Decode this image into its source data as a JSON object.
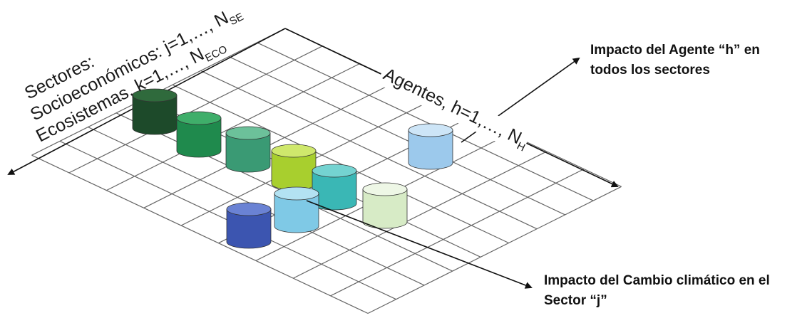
{
  "labels": {
    "sectores": "Sectores:",
    "socio_main": "Socioeconómicos: j=1,…, N",
    "socio_sub": "SE",
    "eco_main": "Ecosistemas, k=1,…, N",
    "eco_sub": "ECO",
    "agentes_main": "Agentes, h=1,…, N",
    "agentes_sub": "H",
    "impact_agent_line1": "Impacto del Agente “h” en",
    "impact_agent_line2": "todos los sectores",
    "impact_climate_line1": "Impacto del Cambio climático en el",
    "impact_climate_line2": "Sector “j”"
  },
  "cylinders": [
    {
      "id": "cyl-1",
      "side": "#1d4a2a",
      "top": "#2f6a3c"
    },
    {
      "id": "cyl-2",
      "side": "#1f8a4d",
      "top": "#3fae6a"
    },
    {
      "id": "cyl-3",
      "side": "#3a9a74",
      "top": "#6cc19a"
    },
    {
      "id": "cyl-4",
      "side": "#a8cf2e",
      "top": "#cfe86c"
    },
    {
      "id": "cyl-5",
      "side": "#3ab7b5",
      "top": "#74d3d1"
    },
    {
      "id": "cyl-6",
      "side": "#7fc9e6",
      "top": "#b3e2f2"
    },
    {
      "id": "cyl-7",
      "side": "#d7ebc6",
      "top": "#eef7e6"
    },
    {
      "id": "cyl-8",
      "side": "#3c55b0",
      "top": "#6a82d4"
    },
    {
      "id": "cyl-9",
      "side": "#9cc9ec",
      "top": "#cde5f7"
    }
  ]
}
